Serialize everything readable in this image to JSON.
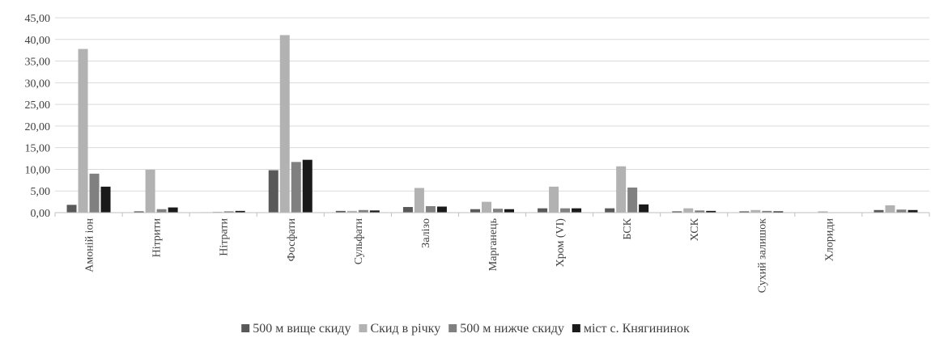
{
  "chart_data": {
    "type": "bar",
    "title": "",
    "xlabel": "",
    "ylabel": "",
    "ylim": [
      0,
      45
    ],
    "yticks": [
      "0,00",
      "5,00",
      "10,00",
      "15,00",
      "20,00",
      "25,00",
      "30,00",
      "35,00",
      "40,00",
      "45,00"
    ],
    "grid": true,
    "legend_position": "bottom",
    "categories": [
      "Амоній іон",
      "Нітрити",
      "Нітрати",
      "Фосфати",
      "Сульфати",
      "Залізо",
      "Марганець",
      "Хром (VI)",
      "БСК",
      "ХСК",
      "Сухий залишок",
      "Хлориди",
      ""
    ],
    "series": [
      {
        "name": "500 м вище скиду",
        "color": "#595959",
        "values": [
          1.8,
          0.3,
          0.1,
          9.8,
          0.4,
          1.3,
          0.8,
          1.0,
          1.0,
          0.3,
          0.3,
          0.05,
          0.6
        ]
      },
      {
        "name": "Скид в річку",
        "color": "#b2b2b2",
        "values": [
          37.8,
          9.9,
          0.2,
          41.0,
          0.4,
          5.7,
          2.5,
          6.0,
          10.7,
          1.0,
          0.6,
          0.3,
          1.7
        ]
      },
      {
        "name": "500 м нижче скиду",
        "color": "#808080",
        "values": [
          9.0,
          0.8,
          0.3,
          11.7,
          0.6,
          1.5,
          0.9,
          1.0,
          5.8,
          0.5,
          0.4,
          0.05,
          0.7
        ]
      },
      {
        "name": "міст с. Княгининок",
        "color": "#1a1a1a",
        "values": [
          6.0,
          1.2,
          0.4,
          12.2,
          0.5,
          1.4,
          0.8,
          1.0,
          1.9,
          0.4,
          0.3,
          0.05,
          0.6
        ]
      }
    ]
  }
}
